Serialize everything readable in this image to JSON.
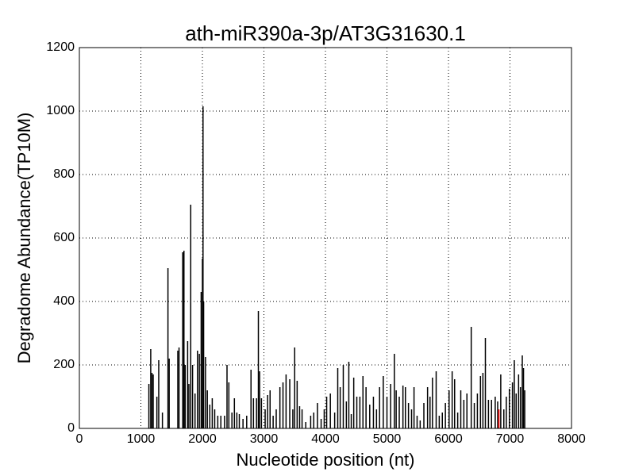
{
  "chart_data": {
    "type": "stem",
    "title": "ath-miR390a-3p/AT3G31630.1",
    "xlabel": "Nucleotide position (nt)",
    "ylabel": "Degradome Abundance(TP10M)",
    "xlim": [
      0,
      8000
    ],
    "xticks": [
      0,
      1000,
      2000,
      3000,
      4000,
      5000,
      6000,
      7000,
      8000
    ],
    "ylim": [
      0,
      1200
    ],
    "yticks": [
      0,
      200,
      400,
      600,
      800,
      1000,
      1200
    ],
    "grid": true,
    "series": [
      {
        "color": "#000000",
        "x": [
          1130,
          1160,
          1180,
          1200,
          1260,
          1290,
          1350,
          1440,
          1460,
          1600,
          1620,
          1680,
          1700,
          1720,
          1760,
          1780,
          1810,
          1840,
          1880,
          1920,
          1950,
          1980,
          2000,
          2010,
          2020,
          2050,
          2080,
          2120,
          2160,
          2200,
          2250,
          2300,
          2360,
          2400,
          2430,
          2480,
          2520,
          2560,
          2600,
          2660,
          2720,
          2790,
          2830,
          2880,
          2910,
          2930,
          2960,
          3020,
          3060,
          3100,
          3150,
          3200,
          3260,
          3310,
          3360,
          3420,
          3470,
          3500,
          3540,
          3580,
          3620,
          3680,
          3760,
          3810,
          3870,
          3930,
          3980,
          4020,
          4080,
          4150,
          4200,
          4240,
          4290,
          4340,
          4380,
          4420,
          4460,
          4510,
          4560,
          4610,
          4660,
          4720,
          4780,
          4830,
          4880,
          4940,
          5000,
          5060,
          5120,
          5150,
          5200,
          5260,
          5300,
          5350,
          5400,
          5440,
          5490,
          5540,
          5600,
          5660,
          5700,
          5740,
          5800,
          5850,
          5900,
          5950,
          6010,
          6060,
          6100,
          6150,
          6200,
          6250,
          6300,
          6370,
          6420,
          6470,
          6520,
          6560,
          6600,
          6650,
          6700,
          6760,
          6800,
          6850,
          6900,
          6940,
          6990,
          7040,
          7070,
          7100,
          7140,
          7170,
          7200,
          7220,
          7240
        ],
        "values": [
          140,
          250,
          175,
          170,
          100,
          215,
          50,
          505,
          220,
          245,
          255,
          555,
          560,
          200,
          275,
          140,
          705,
          200,
          110,
          245,
          235,
          430,
          535,
          1015,
          400,
          225,
          120,
          75,
          95,
          60,
          40,
          40,
          40,
          200,
          145,
          50,
          95,
          50,
          45,
          30,
          40,
          185,
          95,
          95,
          370,
          180,
          95,
          60,
          105,
          120,
          40,
          60,
          130,
          145,
          170,
          155,
          60,
          255,
          150,
          70,
          60,
          20,
          40,
          50,
          80,
          30,
          60,
          100,
          110,
          50,
          190,
          130,
          200,
          85,
          210,
          45,
          160,
          100,
          100,
          165,
          130,
          75,
          100,
          60,
          130,
          165,
          100,
          140,
          235,
          120,
          100,
          135,
          130,
          80,
          60,
          130,
          40,
          25,
          80,
          130,
          100,
          160,
          180,
          40,
          50,
          80,
          120,
          180,
          155,
          50,
          120,
          90,
          110,
          320,
          80,
          110,
          165,
          175,
          285,
          90,
          90,
          100,
          85,
          170,
          60,
          100,
          125,
          145,
          215,
          110,
          170,
          130,
          230,
          190,
          120
        ]
      },
      {
        "color": "#ff0000",
        "x": [
          6820
        ],
        "values": [
          60
        ]
      }
    ]
  }
}
